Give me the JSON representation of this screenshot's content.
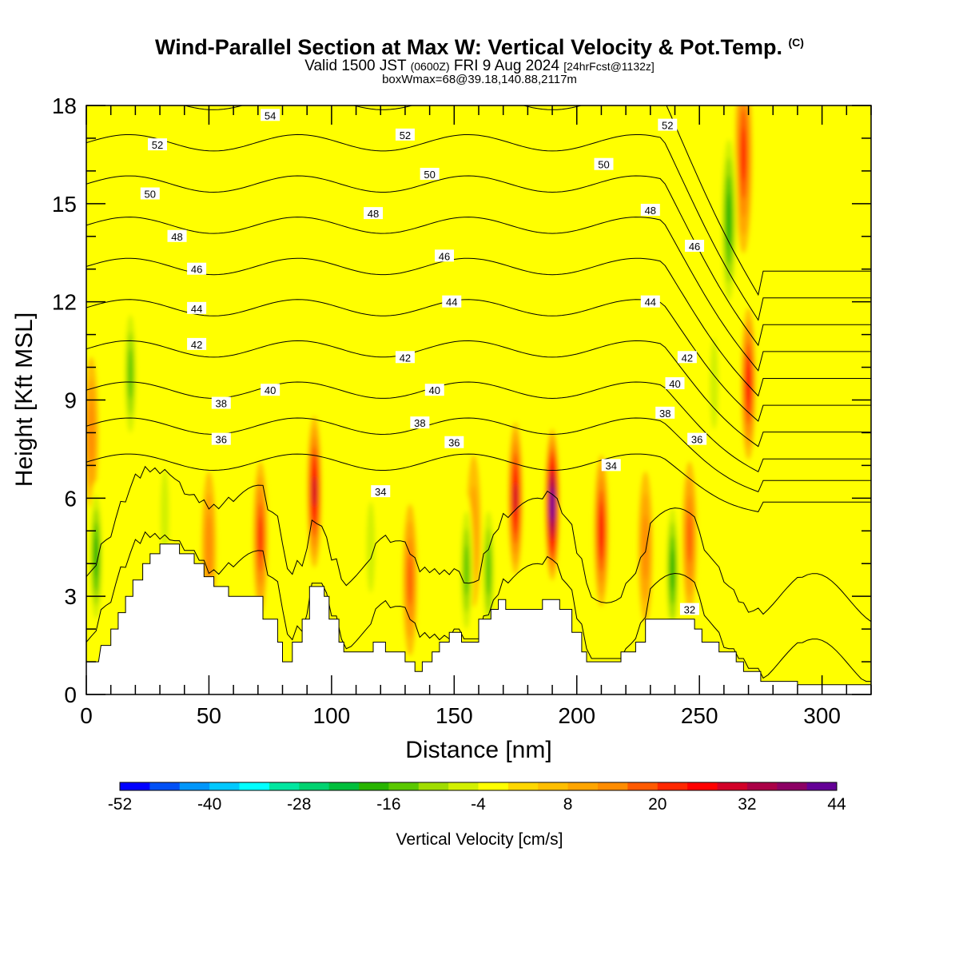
{
  "titles": {
    "main": "Wind-Parallel Section at Max W: Vertical Velocity & Pot.Temp.",
    "copyright": "(C)",
    "valid_prefix": "Valid 1500 JST",
    "valid_utc": "(0600Z)",
    "valid_date": "FRI 9 Aug 2024",
    "forecast": "[24hrFcst@1132z]",
    "box_info": "boxWmax=68@39.18,140.88,2117m"
  },
  "chart_data": {
    "type": "heatmap",
    "xlabel": "Distance [nm]",
    "ylabel": "Height [Kft MSL]",
    "xlim": [
      0,
      320
    ],
    "ylim": [
      0,
      18
    ],
    "x_ticks": [
      0,
      50,
      100,
      150,
      200,
      250,
      300
    ],
    "y_ticks": [
      0,
      3,
      6,
      9,
      12,
      15,
      18
    ],
    "colorbar": {
      "label": "Vertical Velocity [cm/s]",
      "tick_labels": [
        -52,
        -40,
        -28,
        -16,
        -4,
        8,
        20,
        32,
        44
      ],
      "levels": [
        -52,
        -48,
        -44,
        -40,
        -36,
        -32,
        -28,
        -24,
        -20,
        -16,
        -12,
        -8,
        -4,
        0,
        4,
        8,
        12,
        16,
        20,
        24,
        28,
        32,
        36,
        40,
        44
      ],
      "colors": [
        "#0000ff",
        "#0050f5",
        "#0096fa",
        "#00c8ff",
        "#00ffff",
        "#00e6a0",
        "#00d270",
        "#00be3c",
        "#28b400",
        "#5ac800",
        "#a0dc00",
        "#d2f000",
        "#ffff00",
        "#ffd700",
        "#ffbe00",
        "#ffa500",
        "#ff8c00",
        "#ff5a00",
        "#ff2800",
        "#ff0000",
        "#d20028",
        "#aa0046",
        "#8c0064",
        "#640096"
      ]
    },
    "terrain_kft": [
      [
        0,
        1
      ],
      [
        5,
        1
      ],
      [
        6,
        1.5
      ],
      [
        10,
        1.5
      ],
      [
        10,
        2
      ],
      [
        13,
        2
      ],
      [
        13,
        2.5
      ],
      [
        16,
        2.5
      ],
      [
        16,
        3
      ],
      [
        19,
        3
      ],
      [
        19,
        3.5
      ],
      [
        23,
        3.5
      ],
      [
        23,
        4
      ],
      [
        26,
        4
      ],
      [
        26,
        4.3
      ],
      [
        30,
        4.3
      ],
      [
        30,
        4.6
      ],
      [
        38,
        4.6
      ],
      [
        38,
        4.3
      ],
      [
        44,
        4.3
      ],
      [
        44,
        4
      ],
      [
        48,
        4
      ],
      [
        48,
        3.6
      ],
      [
        52,
        3.6
      ],
      [
        52,
        3.3
      ],
      [
        58,
        3.3
      ],
      [
        58,
        3
      ],
      [
        72,
        3
      ],
      [
        72,
        2.3
      ],
      [
        78,
        2.3
      ],
      [
        78,
        1.6
      ],
      [
        80,
        1.6
      ],
      [
        80,
        1
      ],
      [
        84,
        1
      ],
      [
        84,
        1.6
      ],
      [
        88,
        1.6
      ],
      [
        88,
        2.3
      ],
      [
        91,
        2.3
      ],
      [
        91,
        3.3
      ],
      [
        97,
        3.3
      ],
      [
        97,
        3
      ],
      [
        99,
        3
      ],
      [
        99,
        2.3
      ],
      [
        103,
        2.3
      ],
      [
        103,
        1.6
      ],
      [
        105,
        1.6
      ],
      [
        105,
        1.3
      ],
      [
        117,
        1.3
      ],
      [
        117,
        1.6
      ],
      [
        122,
        1.6
      ],
      [
        122,
        1.3
      ],
      [
        130,
        1.3
      ],
      [
        130,
        1
      ],
      [
        134,
        1
      ],
      [
        134,
        0.7
      ],
      [
        137,
        0.7
      ],
      [
        137,
        1
      ],
      [
        141,
        1
      ],
      [
        141,
        1.3
      ],
      [
        144,
        1.3
      ],
      [
        144,
        1.6
      ],
      [
        148,
        1.6
      ],
      [
        148,
        1.9
      ],
      [
        153,
        1.9
      ],
      [
        153,
        1.6
      ],
      [
        160,
        1.6
      ],
      [
        160,
        2.3
      ],
      [
        165,
        2.3
      ],
      [
        165,
        2.6
      ],
      [
        168,
        2.6
      ],
      [
        168,
        2.9
      ],
      [
        171,
        2.9
      ],
      [
        171,
        2.6
      ],
      [
        186,
        2.6
      ],
      [
        186,
        2.9
      ],
      [
        193,
        2.9
      ],
      [
        193,
        2.6
      ],
      [
        198,
        2.6
      ],
      [
        198,
        1.9
      ],
      [
        202,
        1.9
      ],
      [
        202,
        1.3
      ],
      [
        204,
        1.3
      ],
      [
        204,
        1
      ],
      [
        218,
        1
      ],
      [
        218,
        1.3
      ],
      [
        224,
        1.3
      ],
      [
        224,
        1.6
      ],
      [
        228,
        1.6
      ],
      [
        228,
        2.3
      ],
      [
        248,
        2.3
      ],
      [
        248,
        2
      ],
      [
        251,
        2
      ],
      [
        251,
        1.6
      ],
      [
        258,
        1.6
      ],
      [
        258,
        1.3
      ],
      [
        265,
        1.3
      ],
      [
        265,
        1
      ],
      [
        268,
        1
      ],
      [
        268,
        0.7
      ],
      [
        275,
        0.7
      ],
      [
        275,
        0.4
      ],
      [
        290,
        0.4
      ],
      [
        290,
        0.3
      ],
      [
        320,
        0.3
      ]
    ],
    "updrafts": [
      {
        "x": 93,
        "z": 6.2,
        "w": 30
      },
      {
        "x": 71,
        "z": 4.8,
        "w": 22
      },
      {
        "x": 175,
        "z": 6.0,
        "w": 30
      },
      {
        "x": 190,
        "z": 5.8,
        "w": 44
      },
      {
        "x": 210,
        "z": 5.0,
        "w": 24
      },
      {
        "x": 270,
        "z": 9.5,
        "w": 26
      },
      {
        "x": 268,
        "z": 16.5,
        "w": 20
      },
      {
        "x": 2,
        "z": 8.0,
        "w": 12
      },
      {
        "x": 132,
        "z": 3.5,
        "w": 16
      },
      {
        "x": 246,
        "z": 4.8,
        "w": 18
      },
      {
        "x": 50,
        "z": 4.5,
        "w": 12
      },
      {
        "x": 158,
        "z": 5.0,
        "w": 10
      },
      {
        "x": 228,
        "z": 4.5,
        "w": 12
      }
    ],
    "downdrafts": [
      {
        "x": 4,
        "z": 4.2,
        "w": -22
      },
      {
        "x": 18,
        "z": 9.8,
        "w": -16
      },
      {
        "x": 155,
        "z": 3.8,
        "w": -18
      },
      {
        "x": 164,
        "z": 3.8,
        "w": -16
      },
      {
        "x": 239,
        "z": 3.8,
        "w": -20
      },
      {
        "x": 262,
        "z": 14.5,
        "w": -20
      },
      {
        "x": 256,
        "z": 9.5,
        "w": -10
      },
      {
        "x": 116,
        "z": 4.5,
        "w": -10
      },
      {
        "x": 32,
        "z": 5.5,
        "w": -10
      }
    ],
    "theta_contours": {
      "units_note": "",
      "levels": [
        32,
        34,
        36,
        38,
        40,
        42,
        44,
        46,
        48,
        50,
        52,
        54
      ],
      "labels": [
        {
          "text": "54",
          "x": 75,
          "y": 17.7
        },
        {
          "text": "52",
          "x": 29,
          "y": 16.8
        },
        {
          "text": "52",
          "x": 130,
          "y": 17.1
        },
        {
          "text": "52",
          "x": 237,
          "y": 17.4
        },
        {
          "text": "50",
          "x": 26,
          "y": 15.3
        },
        {
          "text": "50",
          "x": 140,
          "y": 15.9
        },
        {
          "text": "50",
          "x": 211,
          "y": 16.2
        },
        {
          "text": "48",
          "x": 37,
          "y": 14.0
        },
        {
          "text": "48",
          "x": 117,
          "y": 14.7
        },
        {
          "text": "48",
          "x": 230,
          "y": 14.8
        },
        {
          "text": "46",
          "x": 45,
          "y": 13.0
        },
        {
          "text": "46",
          "x": 146,
          "y": 13.4
        },
        {
          "text": "46",
          "x": 248,
          "y": 13.7
        },
        {
          "text": "44",
          "x": 45,
          "y": 11.8
        },
        {
          "text": "44",
          "x": 149,
          "y": 12.0
        },
        {
          "text": "44",
          "x": 230,
          "y": 12.0
        },
        {
          "text": "42",
          "x": 45,
          "y": 10.7
        },
        {
          "text": "42",
          "x": 130,
          "y": 10.3
        },
        {
          "text": "42",
          "x": 245,
          "y": 10.3
        },
        {
          "text": "40",
          "x": 75,
          "y": 9.3
        },
        {
          "text": "40",
          "x": 142,
          "y": 9.3
        },
        {
          "text": "40",
          "x": 240,
          "y": 9.5
        },
        {
          "text": "38",
          "x": 55,
          "y": 8.9
        },
        {
          "text": "38",
          "x": 136,
          "y": 8.3
        },
        {
          "text": "38",
          "x": 236,
          "y": 8.6
        },
        {
          "text": "36",
          "x": 55,
          "y": 7.8
        },
        {
          "text": "36",
          "x": 150,
          "y": 7.7
        },
        {
          "text": "36",
          "x": 249,
          "y": 7.8
        },
        {
          "text": "34",
          "x": 120,
          "y": 6.2
        },
        {
          "text": "34",
          "x": 214,
          "y": 7.0
        },
        {
          "text": "32",
          "x": 246,
          "y": 2.6
        }
      ]
    }
  }
}
